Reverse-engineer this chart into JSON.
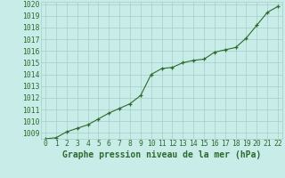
{
  "x": [
    0,
    1,
    2,
    3,
    4,
    5,
    6,
    7,
    8,
    9,
    10,
    11,
    12,
    13,
    14,
    15,
    16,
    17,
    18,
    19,
    20,
    21,
    22
  ],
  "y": [
    1008.5,
    1008.6,
    1009.1,
    1009.4,
    1009.7,
    1010.2,
    1010.7,
    1011.1,
    1011.5,
    1012.2,
    1014.0,
    1014.5,
    1014.6,
    1015.0,
    1015.2,
    1015.3,
    1015.9,
    1016.1,
    1016.3,
    1017.1,
    1018.2,
    1019.3,
    1019.8
  ],
  "line_color": "#2d6a2d",
  "marker": "+",
  "bg_color": "#c8ede8",
  "grid_color": "#a8ccc8",
  "xlabel": "Graphe pression niveau de la mer (hPa)",
  "xlabel_color": "#2d6a2d",
  "ylim_min": 1008.5,
  "ylim_max": 1020.2,
  "yticks": [
    1009,
    1010,
    1011,
    1012,
    1013,
    1014,
    1015,
    1016,
    1017,
    1018,
    1019,
    1020
  ],
  "xtick_min": 0,
  "xtick_max": 22,
  "label_fontsize": 7,
  "tick_fontsize": 5.8
}
